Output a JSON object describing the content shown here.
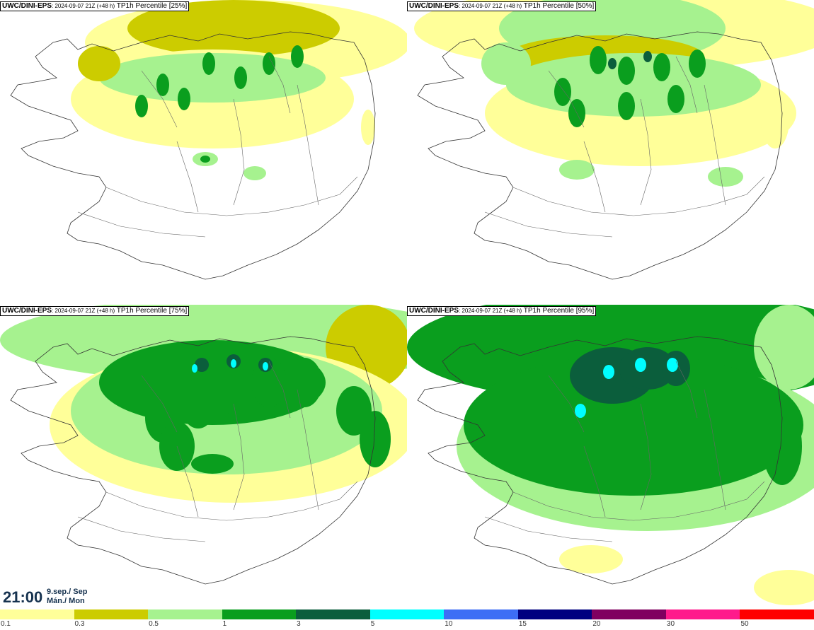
{
  "panels": [
    {
      "source": "UWC/DINI-EPS",
      "run": ": 2024-09-07 21Z (+48 h)",
      "field": "TP1h Percentile [25%]",
      "percentile": 25
    },
    {
      "source": "UWC/DINI-EPS",
      "run": ": 2024-09-07 21Z (+48 h)",
      "field": "TP1h Percentile [50%]",
      "percentile": 50
    },
    {
      "source": "UWC/DINI-EPS",
      "run": ": 2024-09-07 21Z (+48 h)",
      "field": "TP1h Percentile [75%]",
      "percentile": 75
    },
    {
      "source": "UWC/DINI-EPS",
      "run": ": 2024-09-07 21Z (+48 h)",
      "field": "TP1h Percentile [95%]",
      "percentile": 95
    }
  ],
  "valid_time": {
    "time": "21:00",
    "date_line1": "9.sep./ Sep",
    "date_line2": "Mán./ Mon"
  },
  "colorbar": {
    "colors": [
      "#ffff99",
      "#cccc00",
      "#a6f28f",
      "#0a9e1e",
      "#0b5e3c",
      "#00ffff",
      "#3d6ef5",
      "#000080",
      "#800060",
      "#ff1a8c",
      "#ff0000"
    ],
    "labels": [
      "0.1",
      "0.3",
      "0.5",
      "1",
      "3",
      "5",
      "10",
      "15",
      "20",
      "30",
      "50"
    ]
  },
  "icons": {
    "map": "iceland-coastline-map"
  }
}
